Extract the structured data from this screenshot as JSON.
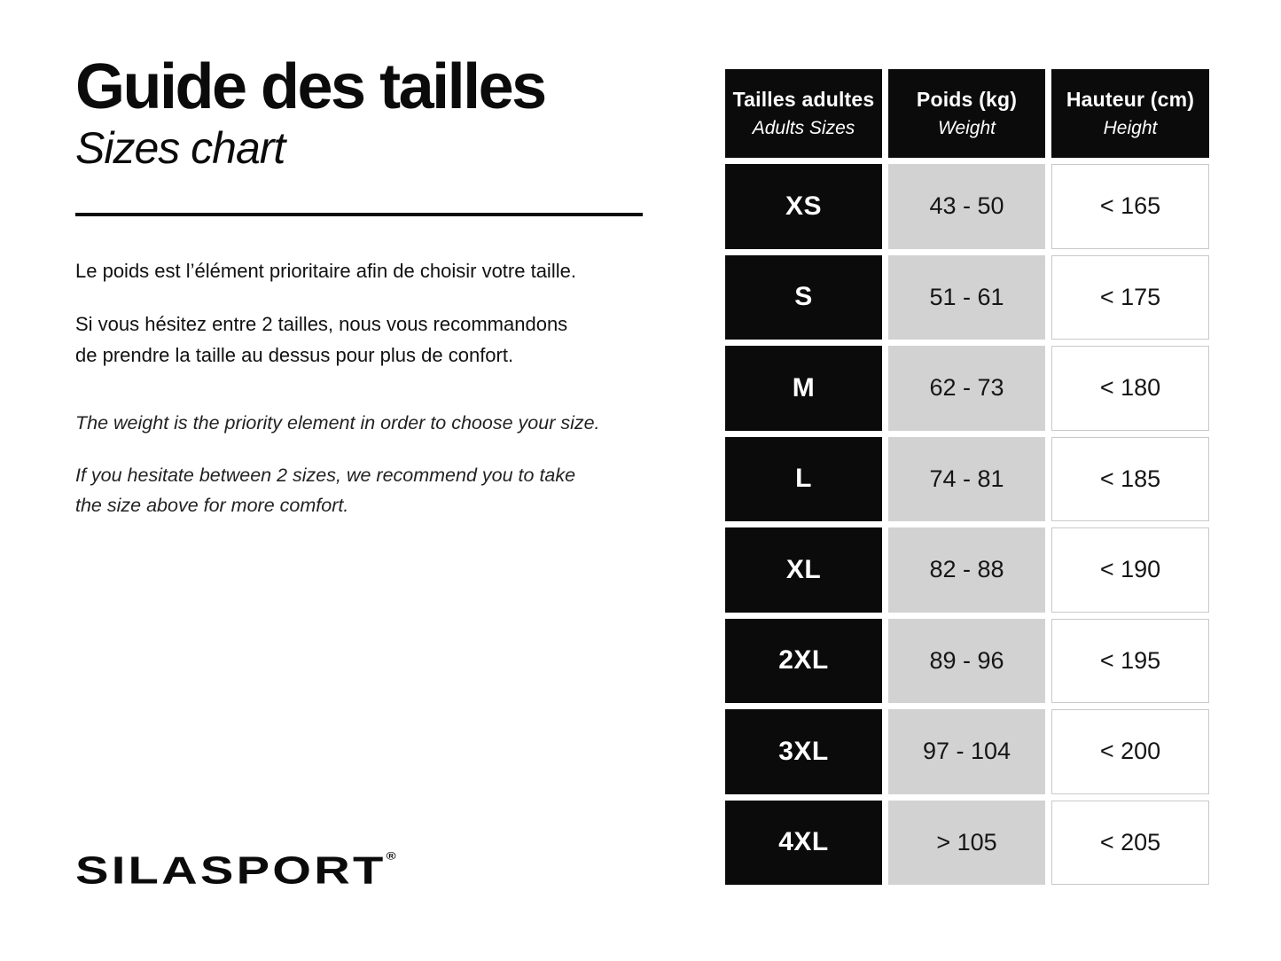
{
  "colors": {
    "black": "#0b0b0b",
    "gray_cell": "#d2d2d2",
    "white_cell_border": "#c9c9c9",
    "background": "#ffffff"
  },
  "header": {
    "title_fr": "Guide des tailles",
    "title_en": "Sizes chart"
  },
  "intro": {
    "fr": [
      {
        "lines": [
          "Le poids est l’élément prioritaire afin de choisir votre taille."
        ]
      },
      {
        "lines": [
          "Si vous hésitez entre 2 tailles, nous vous recommandons",
          "de prendre la taille au dessus pour plus de confort."
        ]
      }
    ],
    "en": [
      {
        "lines": [
          "The weight is the priority element in order to choose your size."
        ]
      },
      {
        "lines": [
          "If you hesitate between 2 sizes, we recommend you to take",
          "the size above for more comfort."
        ]
      }
    ]
  },
  "brand": {
    "name": "SILASPORT",
    "registered": "®"
  },
  "table": {
    "columns": [
      {
        "label_fr": "Tailles adultes",
        "label_en": "Adults Sizes"
      },
      {
        "label_fr": "Poids (kg)",
        "label_en": "Weight"
      },
      {
        "label_fr": "Hauteur (cm)",
        "label_en": "Height"
      }
    ],
    "rows": [
      {
        "size": "XS",
        "weight": "43 - 50",
        "height": "< 165"
      },
      {
        "size": "S",
        "weight": "51 - 61",
        "height": "< 175"
      },
      {
        "size": "M",
        "weight": "62 - 73",
        "height": "< 180"
      },
      {
        "size": "L",
        "weight": "74 - 81",
        "height": "< 185"
      },
      {
        "size": "XL",
        "weight": "82 - 88",
        "height": "< 190"
      },
      {
        "size": "2XL",
        "weight": "89 - 96",
        "height": "< 195"
      },
      {
        "size": "3XL",
        "weight": "97 - 104",
        "height": "< 200"
      },
      {
        "size": "4XL",
        "weight": "> 105",
        "height": "< 205"
      }
    ]
  }
}
